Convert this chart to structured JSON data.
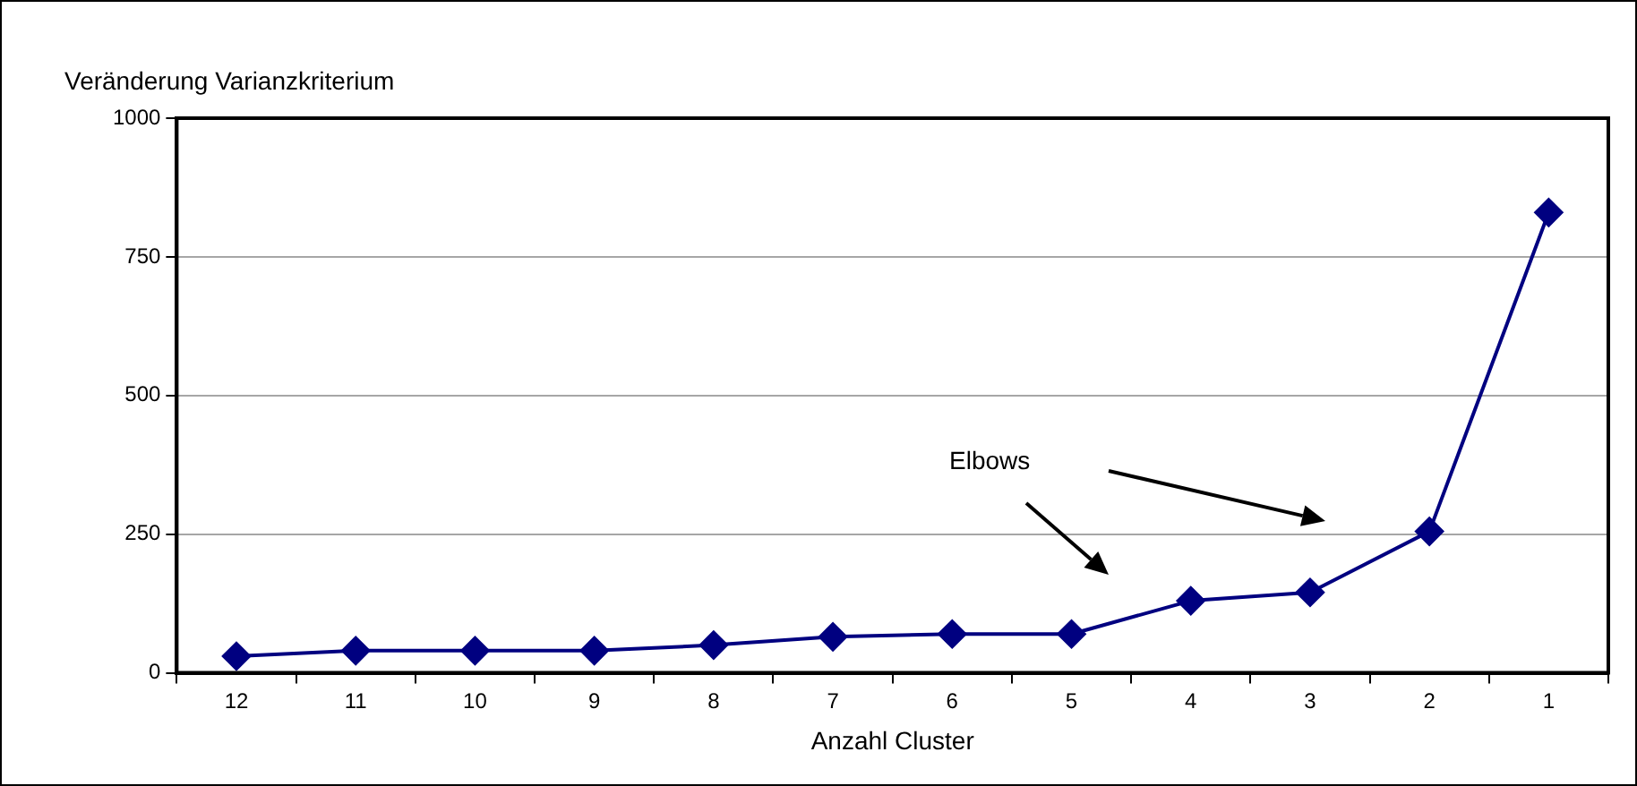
{
  "chart_data": {
    "type": "line",
    "ylabel": "Veränderung Varianzkriterium",
    "xlabel": "Anzahl Cluster",
    "categories": [
      "12",
      "11",
      "10",
      "9",
      "8",
      "7",
      "6",
      "5",
      "4",
      "3",
      "2",
      "1"
    ],
    "series": [
      {
        "color": "#000080",
        "values": [
          30,
          40,
          40,
          40,
          50,
          65,
          70,
          70,
          130,
          145,
          255,
          830
        ]
      }
    ],
    "ylim": [
      0,
      1000
    ],
    "yticks": [
      0,
      250,
      500,
      750,
      1000
    ],
    "grid": "y",
    "legend": false,
    "marker": "diamond",
    "line_style": "solid",
    "annotations": [
      "Elbows"
    ]
  }
}
